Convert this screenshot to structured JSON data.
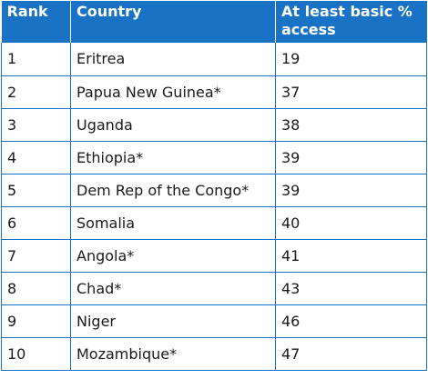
{
  "table": {
    "headers": {
      "rank": "Rank",
      "country": "Country",
      "access": "At least basic % access"
    },
    "rows": [
      {
        "rank": "1",
        "country": "Eritrea",
        "access": "19"
      },
      {
        "rank": "2",
        "country": "Papua New Guinea*",
        "access": "37"
      },
      {
        "rank": "3",
        "country": "Uganda",
        "access": "38"
      },
      {
        "rank": "4",
        "country": "Ethiopia*",
        "access": "39"
      },
      {
        "rank": "5",
        "country": "Dem Rep of the Congo*",
        "access": "39"
      },
      {
        "rank": "6",
        "country": "Somalia",
        "access": "40"
      },
      {
        "rank": "7",
        "country": "Angola*",
        "access": "41"
      },
      {
        "rank": "8",
        "country": "Chad*",
        "access": "43"
      },
      {
        "rank": "9",
        "country": "Niger",
        "access": "46"
      },
      {
        "rank": "10",
        "country": "Mozambique*",
        "access": "47"
      }
    ]
  },
  "colors": {
    "header_bg": "#1a72c4",
    "header_text": "#ffffff",
    "border": "#1a72c4"
  }
}
